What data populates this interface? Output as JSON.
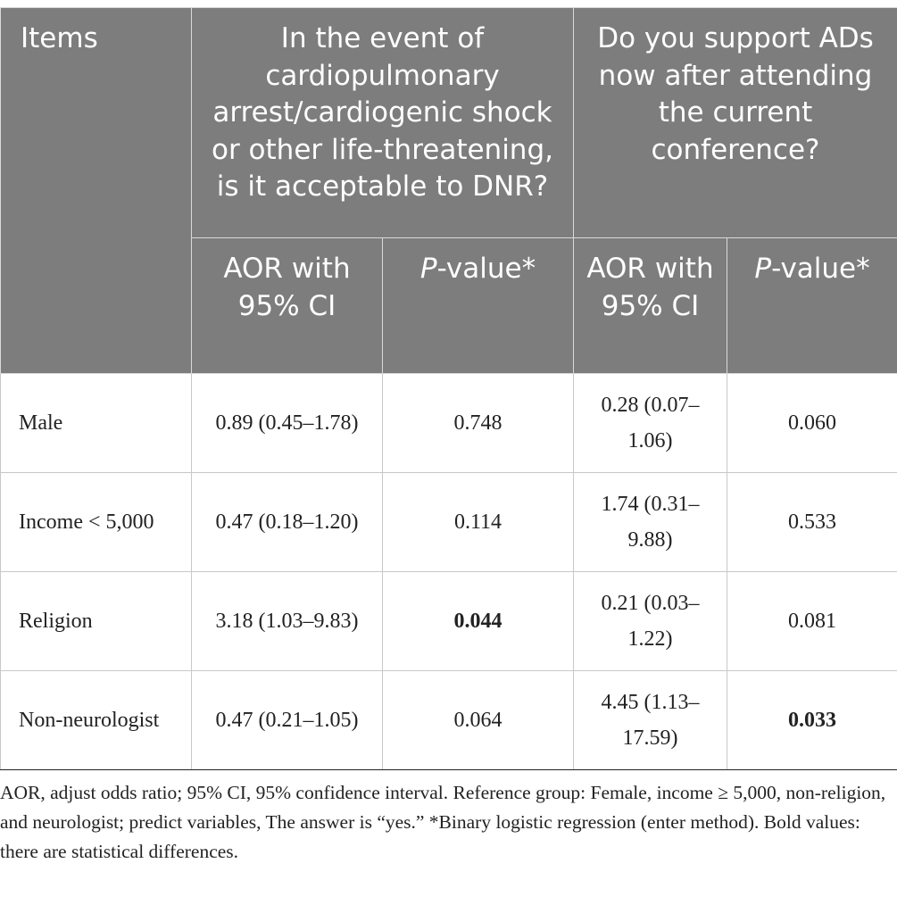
{
  "header": {
    "items": "Items",
    "group1": "In the event of cardiopulmonary arrest/cardiogenic shock or other life-threatening, is it acceptable to DNR?",
    "group2": "Do you support ADs now after attending the current conference?",
    "aor1": "AOR with 95% CI",
    "p1_italic": "P",
    "p1_rest": "-value*",
    "aor2": "AOR with 95% CI",
    "p2_italic": "P",
    "p2_rest": "-value*"
  },
  "rows": [
    {
      "label": "Male",
      "aor_dnr": "0.89 (0.45–1.78)",
      "p_dnr": "0.748",
      "aor_ads": "0.28 (0.07–1.06)",
      "p_ads": "0.060"
    },
    {
      "label": "Income < 5,000",
      "aor_dnr": "0.47 (0.18–1.20)",
      "p_dnr": "0.114",
      "aor_ads": "1.74 (0.31–9.88)",
      "p_ads": "0.533"
    },
    {
      "label": "Religion",
      "aor_dnr": "3.18 (1.03–9.83)",
      "p_dnr": "0.044",
      "aor_ads": "0.21 (0.03–1.22)",
      "p_ads": "0.081"
    },
    {
      "label": "Non-neurologist",
      "aor_dnr": "0.47 (0.21–1.05)",
      "p_dnr": "0.064",
      "aor_ads": "4.45 (1.13–17.59)",
      "p_ads": "0.033"
    }
  ],
  "footnote": "AOR, adjust odds ratio; 95% CI, 95% confidence interval. Reference group: Female, income ≥ 5,000, non-religion, and neurologist; predict variables, The answer is “yes.” *Binary logistic regression (enter method). Bold values: there are statistical differences."
}
